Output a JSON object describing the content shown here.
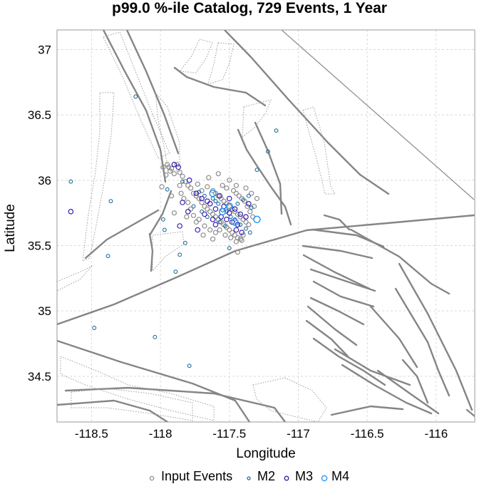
{
  "chart_data": {
    "type": "scatter",
    "title": "p99.0 %-ile Catalog, 729 Events, 1 Year",
    "xlabel": "Longitude",
    "ylabel": "Latitude",
    "xlim": [
      -118.75,
      -115.72
    ],
    "ylim": [
      34.15,
      37.15
    ],
    "x_ticks": [
      -118.5,
      -118,
      -117.5,
      -117,
      -116.5,
      -116
    ],
    "x_tick_labels": [
      "-118.5",
      "-118",
      "-117.5",
      "-117",
      "-116.5",
      "-116"
    ],
    "y_ticks": [
      34.5,
      35,
      35.5,
      36,
      36.5,
      37
    ],
    "y_tick_labels": [
      "34.5",
      "35",
      "35.5",
      "36",
      "36.5",
      "37"
    ],
    "grid": true,
    "legend_position": "bottom",
    "legend": [
      "Input Events",
      "M2",
      "M3",
      "M4"
    ],
    "colors": {
      "input_events": "#8c8c8c",
      "M2": "#1f6f9e",
      "M3": "#3a1fb0",
      "M4": "#1e90ff",
      "faults": "#858585"
    },
    "series": [
      {
        "name": "Input Events",
        "points": [
          [
            -117.95,
            36.12
          ],
          [
            -117.94,
            36.1
          ],
          [
            -117.92,
            36.09
          ],
          [
            -117.93,
            36.07
          ],
          [
            -117.9,
            36.05
          ],
          [
            -117.88,
            36.12
          ],
          [
            -117.86,
            36.06
          ],
          [
            -117.84,
            36.03
          ],
          [
            -117.82,
            35.99
          ],
          [
            -117.8,
            35.96
          ],
          [
            -117.78,
            35.94
          ],
          [
            -117.76,
            35.9
          ],
          [
            -117.74,
            35.88
          ],
          [
            -117.72,
            35.86
          ],
          [
            -117.7,
            35.83
          ],
          [
            -117.68,
            35.8
          ],
          [
            -117.66,
            35.78
          ],
          [
            -117.64,
            35.76
          ],
          [
            -117.62,
            35.74
          ],
          [
            -117.6,
            35.72
          ],
          [
            -117.58,
            35.7
          ],
          [
            -117.56,
            35.68
          ],
          [
            -117.54,
            35.66
          ],
          [
            -117.52,
            35.64
          ],
          [
            -117.5,
            35.62
          ],
          [
            -117.48,
            35.6
          ],
          [
            -117.46,
            35.58
          ],
          [
            -117.44,
            35.56
          ],
          [
            -117.42,
            35.55
          ],
          [
            -117.4,
            35.58
          ],
          [
            -117.62,
            35.92
          ],
          [
            -117.6,
            35.9
          ],
          [
            -117.58,
            35.88
          ],
          [
            -117.56,
            35.86
          ],
          [
            -117.54,
            35.84
          ],
          [
            -117.52,
            35.82
          ],
          [
            -117.5,
            35.8
          ],
          [
            -117.48,
            35.78
          ],
          [
            -117.46,
            35.76
          ],
          [
            -117.44,
            35.74
          ],
          [
            -117.42,
            35.72
          ],
          [
            -117.4,
            35.7
          ],
          [
            -117.38,
            35.68
          ],
          [
            -117.36,
            35.66
          ],
          [
            -117.55,
            35.96
          ],
          [
            -117.52,
            35.94
          ],
          [
            -117.47,
            35.92
          ],
          [
            -117.45,
            35.9
          ],
          [
            -117.43,
            35.88
          ],
          [
            -117.41,
            35.86
          ],
          [
            -117.39,
            35.84
          ],
          [
            -117.37,
            35.8
          ],
          [
            -117.35,
            35.76
          ],
          [
            -117.33,
            35.72
          ],
          [
            -117.66,
            35.95
          ],
          [
            -117.7,
            35.92
          ],
          [
            -117.72,
            35.7
          ],
          [
            -117.68,
            35.65
          ],
          [
            -117.64,
            35.62
          ],
          [
            -117.6,
            35.6
          ],
          [
            -117.57,
            35.62
          ],
          [
            -117.53,
            35.58
          ],
          [
            -117.49,
            35.56
          ],
          [
            -117.45,
            35.53
          ],
          [
            -117.41,
            35.54
          ],
          [
            -117.8,
            35.83
          ],
          [
            -117.78,
            35.78
          ],
          [
            -117.76,
            35.73
          ],
          [
            -117.74,
            35.68
          ],
          [
            -117.85,
            35.9
          ],
          [
            -117.83,
            35.86
          ],
          [
            -117.81,
            35.72
          ],
          [
            -117.98,
            36.1
          ],
          [
            -117.96,
            36.04
          ],
          [
            -117.86,
            35.96
          ],
          [
            -117.73,
            35.97
          ],
          [
            -117.65,
            36.02
          ],
          [
            -117.58,
            36.05
          ],
          [
            -117.5,
            36.0
          ],
          [
            -117.45,
            35.96
          ],
          [
            -117.38,
            35.94
          ],
          [
            -117.34,
            35.9
          ],
          [
            -117.3,
            35.86
          ],
          [
            -117.32,
            35.8
          ],
          [
            -117.44,
            35.45
          ],
          [
            -117.62,
            35.55
          ],
          [
            -117.69,
            35.58
          ],
          [
            -117.92,
            35.88
          ],
          [
            -117.99,
            35.95
          ],
          [
            -117.9,
            35.75
          ]
        ]
      },
      {
        "name": "M2",
        "points": [
          [
            -118.65,
            35.99
          ],
          [
            -118.36,
            35.84
          ],
          [
            -118.38,
            35.42
          ],
          [
            -117.55,
            35.77
          ],
          [
            -117.58,
            35.82
          ],
          [
            -117.52,
            35.76
          ],
          [
            -117.49,
            35.72
          ],
          [
            -117.46,
            35.7
          ],
          [
            -117.62,
            35.86
          ],
          [
            -117.6,
            35.84
          ],
          [
            -117.68,
            35.88
          ],
          [
            -117.72,
            35.91
          ],
          [
            -117.42,
            35.66
          ],
          [
            -117.38,
            35.63
          ],
          [
            -117.35,
            35.6
          ],
          [
            -117.53,
            35.65
          ],
          [
            -117.57,
            35.68
          ],
          [
            -117.44,
            35.82
          ],
          [
            -117.4,
            35.85
          ],
          [
            -117.36,
            35.88
          ],
          [
            -117.66,
            35.72
          ],
          [
            -117.7,
            35.76
          ],
          [
            -117.76,
            35.8
          ],
          [
            -117.3,
            36.08
          ],
          [
            -117.22,
            36.22
          ],
          [
            -117.16,
            36.38
          ],
          [
            -118.18,
            36.64
          ],
          [
            -118.48,
            34.87
          ],
          [
            -118.04,
            34.8
          ],
          [
            -117.79,
            34.58
          ],
          [
            -117.89,
            35.3
          ],
          [
            -117.86,
            35.43
          ],
          [
            -117.97,
            35.62
          ],
          [
            -117.82,
            35.52
          ],
          [
            -117.5,
            35.48
          ],
          [
            -117.95,
            35.93
          ],
          [
            -117.98,
            35.7
          ],
          [
            -117.84,
            35.99
          ],
          [
            -117.34,
            35.79
          ]
        ]
      },
      {
        "name": "M3",
        "points": [
          [
            -118.65,
            35.76
          ],
          [
            -117.54,
            35.8
          ],
          [
            -117.5,
            35.75
          ],
          [
            -117.46,
            35.78
          ],
          [
            -117.6,
            35.78
          ],
          [
            -117.64,
            35.82
          ],
          [
            -117.56,
            35.72
          ],
          [
            -117.52,
            35.7
          ],
          [
            -117.48,
            35.68
          ],
          [
            -117.44,
            35.66
          ],
          [
            -117.66,
            35.84
          ],
          [
            -117.7,
            35.86
          ],
          [
            -117.74,
            35.9
          ],
          [
            -117.42,
            35.74
          ],
          [
            -117.38,
            35.72
          ],
          [
            -117.6,
            35.66
          ],
          [
            -117.62,
            35.7
          ],
          [
            -117.68,
            35.74
          ],
          [
            -117.57,
            35.88
          ],
          [
            -117.5,
            35.86
          ],
          [
            -117.45,
            35.62
          ],
          [
            -117.41,
            35.6
          ],
          [
            -117.8,
            35.76
          ],
          [
            -117.84,
            35.83
          ],
          [
            -117.86,
            35.65
          ],
          [
            -117.73,
            35.62
          ],
          [
            -117.36,
            35.82
          ],
          [
            -117.9,
            36.12
          ],
          [
            -117.87,
            36.1
          ],
          [
            -117.79,
            36.0
          ]
        ]
      },
      {
        "name": "M4",
        "points": [
          [
            -117.55,
            35.76
          ],
          [
            -117.62,
            35.9
          ],
          [
            -117.46,
            35.68
          ],
          [
            -117.3,
            35.7
          ],
          [
            -117.5,
            35.8
          ]
        ]
      }
    ]
  }
}
